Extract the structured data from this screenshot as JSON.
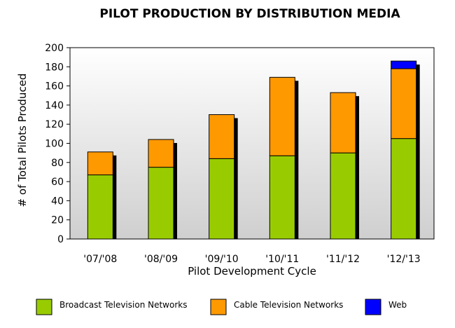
{
  "chart_data": {
    "type": "bar",
    "stacked": true,
    "title": "PILOT PRODUCTION BY DISTRIBUTION MEDIA",
    "xlabel": "Pilot Development Cycle",
    "ylabel": "# of Total Pilots Produced",
    "categories": [
      "'07/'08",
      "'08/'09",
      "'09/'10",
      "'10/'11",
      "'11/'12",
      "'12/'13"
    ],
    "ylim": [
      0,
      200
    ],
    "yticks": [
      0,
      20,
      40,
      60,
      80,
      100,
      120,
      140,
      160,
      180,
      200
    ],
    "grid": false,
    "legend_position": "bottom",
    "series": [
      {
        "name": "Broadcast Television Networks",
        "color": "#99cc00",
        "values": [
          67,
          75,
          84,
          87,
          90,
          105
        ]
      },
      {
        "name": "Cable Television Networks",
        "color": "#ff9900",
        "values": [
          24,
          29,
          46,
          82,
          63,
          73
        ]
      },
      {
        "name": "Web",
        "color": "#0000ff",
        "values": [
          0,
          0,
          0,
          0,
          0,
          8
        ]
      }
    ]
  }
}
